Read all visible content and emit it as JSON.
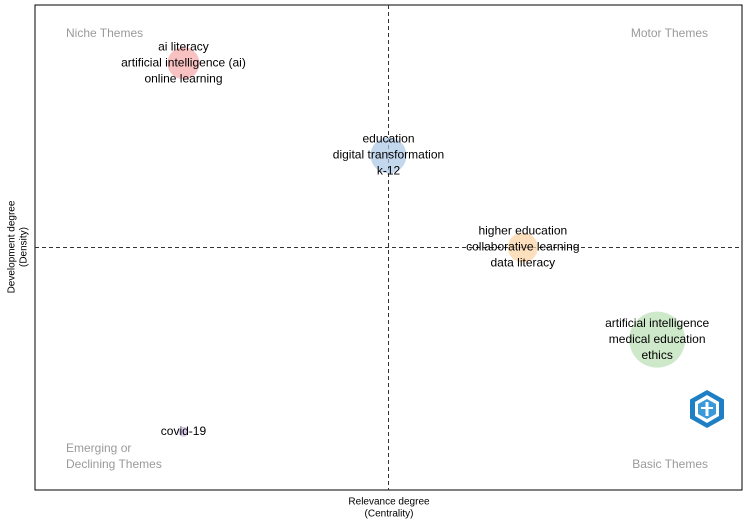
{
  "chart_data": {
    "type": "bubble",
    "x_label": [
      "Relevance degree",
      "(Centrality)"
    ],
    "y_label": [
      "Development degree",
      "(Density)"
    ],
    "quadrants": {
      "top_left": [
        "Niche Themes"
      ],
      "top_right": [
        "Motor Themes"
      ],
      "bottom_left": [
        "Emerging or",
        "Declining Themes"
      ],
      "bottom_right": [
        "Basic Themes"
      ]
    },
    "xlim": [
      0,
      1
    ],
    "ylim": [
      0,
      1
    ],
    "points": [
      {
        "labels": [
          "ai literacy",
          "artificial intelligence (ai)",
          "online learning"
        ],
        "color": "#f7a8a8",
        "x": 0.21,
        "y": 0.88,
        "size": 16
      },
      {
        "labels": [
          "education",
          "digital transformation",
          "k-12"
        ],
        "color": "#a9c6e6",
        "x": 0.5,
        "y": 0.69,
        "size": 18
      },
      {
        "labels": [
          "higher education",
          "collaborative learning",
          "data literacy"
        ],
        "color": "#fbd3a3",
        "x": 0.69,
        "y": 0.5,
        "size": 15
      },
      {
        "labels": [
          "artificial intelligence",
          "medical education",
          "ethics"
        ],
        "color": "#b8e0b3",
        "x": 0.88,
        "y": 0.31,
        "size": 28
      },
      {
        "labels": [
          "covid-19"
        ],
        "color": "#cbb6e3",
        "x": 0.21,
        "y": 0.12,
        "size": 5
      }
    ]
  }
}
